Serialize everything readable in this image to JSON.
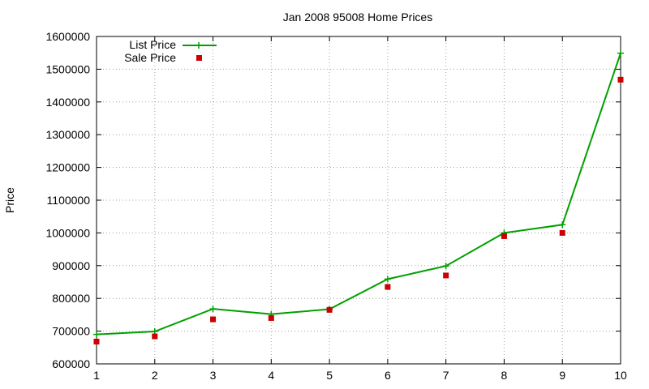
{
  "chart_data": {
    "type": "line",
    "title": "Jan 2008 95008 Home Prices",
    "xlabel": "",
    "ylabel": "Price",
    "x": [
      1,
      2,
      3,
      4,
      5,
      6,
      7,
      8,
      9,
      10
    ],
    "xlim": [
      1,
      10
    ],
    "ylim": [
      600000,
      1600000
    ],
    "xticks": [
      "1",
      "2",
      "3",
      "4",
      "5",
      "6",
      "7",
      "8",
      "9",
      "10"
    ],
    "yticks": [
      "600000",
      "700000",
      "800000",
      "900000",
      "1000000",
      "1100000",
      "1200000",
      "1300000",
      "1400000",
      "1500000",
      "1600000"
    ],
    "grid": true,
    "legend_position": "top-left",
    "series": [
      {
        "name": "List Price",
        "style": "line+points",
        "color": "#00a000",
        "values": [
          690000,
          699000,
          768000,
          752000,
          767000,
          859000,
          899000,
          1000000,
          1025000,
          1549000
        ]
      },
      {
        "name": "Sale Price",
        "style": "points",
        "color": "#cc0000",
        "values": [
          668000,
          684000,
          736000,
          740000,
          765000,
          835000,
          870000,
          990000,
          1000000,
          1468000
        ]
      }
    ]
  }
}
